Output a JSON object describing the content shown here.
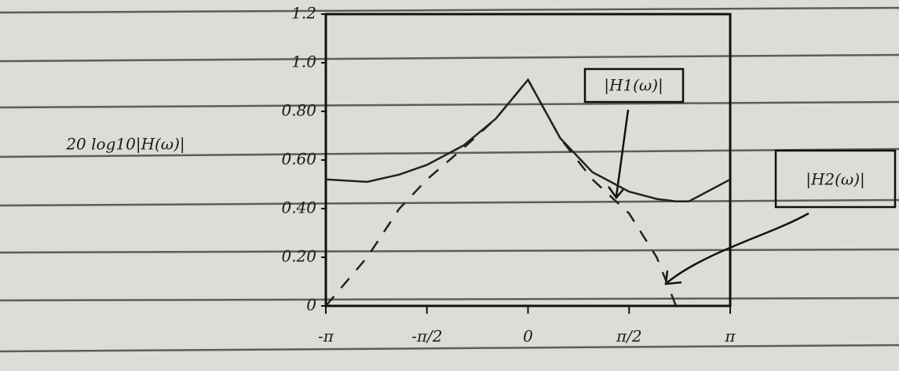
{
  "chart_data": {
    "type": "line",
    "ylabel": "20 log10|H(ω)|",
    "annotations": [
      "|H1(ω)|",
      "|H2(ω)|"
    ],
    "x": [
      -3.1416,
      -2.5,
      -2,
      -1.5708,
      -1,
      -0.5,
      0,
      0.5,
      1,
      1.5708,
      2,
      2.3,
      2.5,
      3.1416
    ],
    "series": [
      {
        "name": "|H1(ω)|",
        "color": "#222222",
        "line_style": "solid",
        "values": [
          0.52,
          0.51,
          0.54,
          0.58,
          0.66,
          0.77,
          0.93,
          0.69,
          0.55,
          0.47,
          0.44,
          0.43,
          0.43,
          0.52
        ]
      },
      {
        "name": "|H2(ω)|",
        "color": "#222222",
        "line_style": "dashed",
        "values": [
          0,
          0.2,
          0.4,
          0.52,
          0.65,
          0.77,
          0.93,
          0.69,
          0.52,
          0.38,
          0.2,
          0,
          null,
          null
        ]
      }
    ],
    "xlim": [
      -3.1416,
      3.1416
    ],
    "xticks": [
      {
        "value": -3.1416,
        "label": "-π"
      },
      {
        "value": -1.5708,
        "label": "-π/2"
      },
      0,
      {
        "value": 1.5708,
        "label": "π/2"
      },
      {
        "value": 3.1416,
        "label": "π"
      }
    ],
    "ylim": [
      0,
      1.2
    ],
    "yticks": [
      0,
      {
        "value": 0.2,
        "label": "0.20"
      },
      {
        "value": 0.4,
        "label": "0.40"
      },
      {
        "value": 0.6,
        "label": "0.60"
      },
      {
        "value": 0.8,
        "label": "0.80"
      },
      {
        "value": 1,
        "label": "1.0"
      },
      1.2
    ]
  }
}
